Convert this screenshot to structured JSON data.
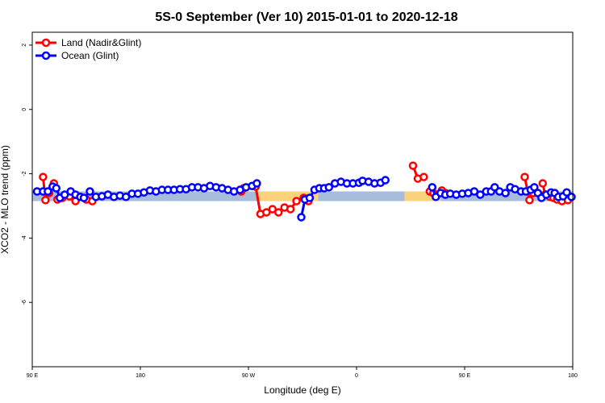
{
  "chart_data": {
    "type": "line",
    "title": "5S-0 September (Ver 10)   2015-01-01 to 2020-12-18",
    "xlabel": "Longitude (deg E)",
    "ylabel": "XCO2 - MLO trend (ppm)",
    "xlim": [
      90,
      540
    ],
    "ylim": [
      -8,
      2.4
    ],
    "x_ticks": [
      {
        "value": 90,
        "label": "90 E"
      },
      {
        "value": 180,
        "label": "180"
      },
      {
        "value": 270,
        "label": "90 W"
      },
      {
        "value": 360,
        "label": "0"
      },
      {
        "value": 450,
        "label": "90 E"
      },
      {
        "value": 540,
        "label": "180"
      }
    ],
    "y_ticks": [
      {
        "value": 2,
        "label": "2"
      },
      {
        "value": 0,
        "label": "0"
      },
      {
        "value": -2,
        "label": "-2"
      },
      {
        "value": -4,
        "label": "-4"
      },
      {
        "value": -6,
        "label": "-6"
      }
    ],
    "background_band": {
      "y_range": [
        -2.85,
        -2.55
      ],
      "segments": [
        {
          "x_range": [
            90,
            278
          ],
          "surface": "ocean",
          "color": "#a8bcdc"
        },
        {
          "x_range": [
            278,
            328
          ],
          "surface": "land",
          "color": "#fad27d"
        },
        {
          "x_range": [
            328,
            400
          ],
          "surface": "ocean",
          "color": "#a8bcdc"
        },
        {
          "x_range": [
            400,
            430
          ],
          "surface": "land",
          "color": "#fad27d"
        },
        {
          "x_range": [
            430,
            540
          ],
          "surface": "ocean",
          "color": "#a8bcdc"
        }
      ]
    },
    "legend": {
      "position": "top-left",
      "entries": [
        {
          "label": "Land (Nadir&Glint)",
          "color": "#ff0000"
        },
        {
          "label": "Ocean (Glint)",
          "color": "#0000ff"
        }
      ]
    },
    "series": [
      {
        "name": "Land (Nadir&Glint)",
        "color": "#ff0000",
        "segments": [
          {
            "x": [
              99,
              101,
              104,
              108
            ],
            "y": [
              -2.1,
              -2.82,
              -2.6,
              -2.3
            ]
          },
          {
            "x": [
              111,
              115
            ],
            "y": [
              -2.8,
              -2.75
            ]
          },
          {
            "x": [
              121,
              126,
              130
            ],
            "y": [
              -2.7,
              -2.85,
              -2.72
            ]
          },
          {
            "x": [
              135,
              140
            ],
            "y": [
              -2.8,
              -2.85
            ]
          },
          {
            "x": [
              264,
              266
            ],
            "y": [
              -2.55,
              -2.45
            ]
          },
          {
            "x": [
              276,
              280,
              285,
              290,
              295,
              300,
              305,
              310
            ],
            "y": [
              -2.4,
              -3.25,
              -3.2,
              -3.1,
              -3.2,
              -3.05,
              -3.1,
              -2.85
            ]
          },
          {
            "x": [
              316,
              320
            ],
            "y": [
              -2.75,
              -2.85
            ]
          },
          {
            "x": [
              407,
              411,
              416
            ],
            "y": [
              -1.75,
              -2.15,
              -2.1
            ]
          },
          {
            "x": [
              421,
              424
            ],
            "y": [
              -2.55,
              -2.6
            ]
          },
          {
            "x": [
              431,
              434
            ],
            "y": [
              -2.52,
              -2.6
            ]
          },
          {
            "x": [
              500,
              504,
              507
            ],
            "y": [
              -2.1,
              -2.82,
              -2.6
            ]
          },
          {
            "x": [
              515,
              517,
              521,
              524,
              527
            ],
            "y": [
              -2.3,
              -2.65,
              -2.72,
              -2.75,
              -2.8
            ]
          },
          {
            "x": [
              531,
              536
            ],
            "y": [
              -2.85,
              -2.82
            ]
          }
        ]
      },
      {
        "name": "Ocean (Glint)",
        "color": "#0000ff",
        "segments": [
          {
            "x": [
              94,
              99,
              103,
              107,
              110,
              113,
              117,
              122,
              126,
              130,
              133,
              138,
              143,
              148,
              153,
              158,
              163,
              168,
              173,
              178,
              183,
              188,
              193,
              198,
              203,
              208,
              213,
              218,
              223,
              228,
              233,
              238,
              243,
              248,
              253,
              258,
              263,
              268,
              273,
              277
            ],
            "y": [
              -2.55,
              -2.55,
              -2.55,
              -2.4,
              -2.45,
              -2.75,
              -2.65,
              -2.55,
              -2.65,
              -2.72,
              -2.75,
              -2.55,
              -2.72,
              -2.7,
              -2.65,
              -2.72,
              -2.68,
              -2.72,
              -2.62,
              -2.62,
              -2.58,
              -2.52,
              -2.55,
              -2.5,
              -2.5,
              -2.5,
              -2.48,
              -2.48,
              -2.42,
              -2.42,
              -2.45,
              -2.38,
              -2.42,
              -2.45,
              -2.5,
              -2.55,
              -2.5,
              -2.42,
              -2.38,
              -2.3
            ]
          },
          {
            "x": [
              314,
              317,
              321,
              325,
              329,
              333,
              337,
              342,
              347,
              352,
              357,
              362,
              365,
              370,
              375,
              380,
              384
            ],
            "y": [
              -3.35,
              -2.8,
              -2.75,
              -2.5,
              -2.45,
              -2.45,
              -2.42,
              -2.3,
              -2.25,
              -2.3,
              -2.3,
              -2.28,
              -2.22,
              -2.25,
              -2.3,
              -2.28,
              -2.2
            ]
          },
          {
            "x": [
              423,
              426,
              430,
              434,
              438,
              443,
              448,
              453,
              458,
              463,
              468,
              472,
              475,
              479,
              484,
              488,
              492,
              497,
              501,
              505,
              508,
              511,
              514,
              518,
              522,
              525,
              528,
              532,
              535,
              539
            ],
            "y": [
              -2.42,
              -2.72,
              -2.6,
              -2.65,
              -2.62,
              -2.65,
              -2.62,
              -2.6,
              -2.55,
              -2.65,
              -2.55,
              -2.55,
              -2.42,
              -2.55,
              -2.6,
              -2.42,
              -2.48,
              -2.55,
              -2.55,
              -2.5,
              -2.42,
              -2.6,
              -2.75,
              -2.65,
              -2.58,
              -2.6,
              -2.72,
              -2.7,
              -2.58,
              -2.72
            ]
          }
        ]
      }
    ]
  }
}
